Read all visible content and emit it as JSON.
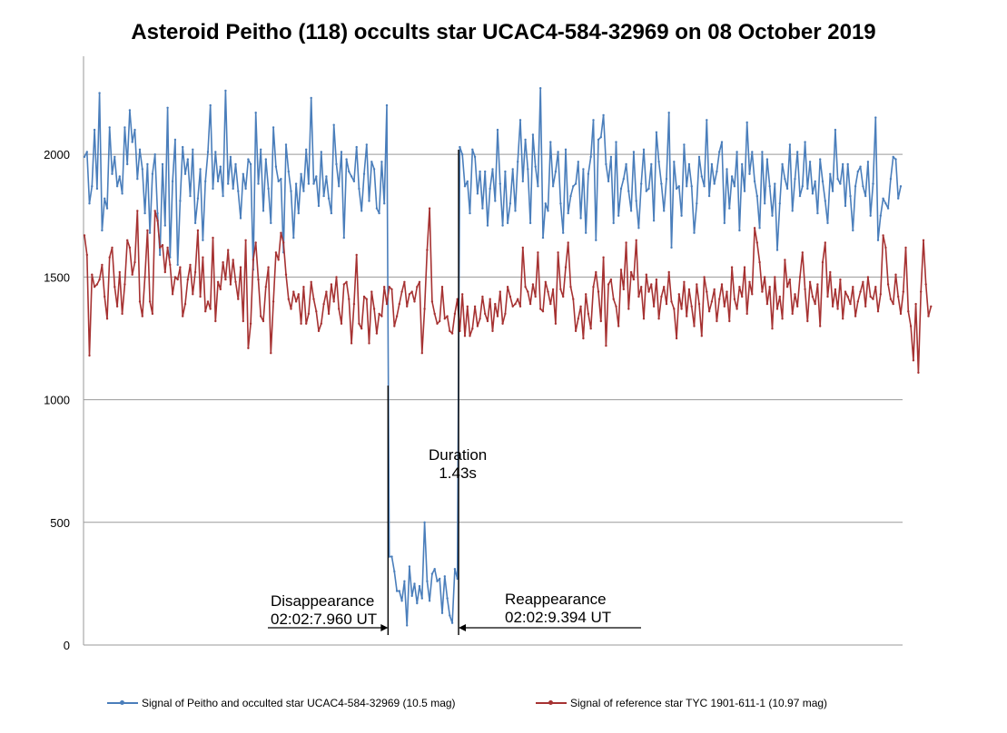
{
  "chart_data": {
    "type": "line",
    "title": "Asteroid Peitho (118) occults star UCAC4-584-32969 on 08 October 2019",
    "xlabel": "",
    "ylabel": "",
    "ylim": [
      0,
      2400
    ],
    "yticks": [
      0,
      500,
      1000,
      1500,
      2000
    ],
    "grid": "horizontal",
    "legend_position": "bottom",
    "series": [
      {
        "name": "Signal of Peitho and occulted star UCAC4-584-32969 (10.5 mag)",
        "color": "#4a7ebb",
        "values": [
          1990,
          2010,
          1800,
          1870,
          2100,
          1860,
          2250,
          1690,
          1820,
          1780,
          2110,
          1920,
          1990,
          1870,
          1910,
          1840,
          2110,
          1960,
          2180,
          2050,
          2100,
          1900,
          2020,
          1940,
          1760,
          1960,
          1680,
          1920,
          2000,
          1760,
          1590,
          1960,
          1710,
          2190,
          1580,
          1890,
          2060,
          1550,
          1810,
          2030,
          1920,
          1980,
          1830,
          2020,
          1720,
          1820,
          1940,
          1650,
          1890,
          2010,
          2200,
          1860,
          2010,
          1890,
          1950,
          1830,
          2260,
          1880,
          1990,
          1860,
          1960,
          1850,
          1740,
          1920,
          1860,
          1980,
          1960,
          1530,
          2170,
          1880,
          2020,
          1770,
          1980,
          1860,
          1720,
          2110,
          1950,
          1890,
          1900,
          1600,
          2040,
          1930,
          1850,
          1660,
          1880,
          1760,
          1920,
          1850,
          2020,
          1880,
          2230,
          1880,
          1910,
          1790,
          2010,
          1830,
          1910,
          1820,
          1760,
          2120,
          1960,
          1870,
          2010,
          1660,
          1980,
          1930,
          1910,
          1890,
          2030,
          1860,
          1770,
          1920,
          2040,
          1810,
          1970,
          1940,
          1780,
          1760,
          1970,
          1800,
          2200,
          360,
          360,
          300,
          220,
          220,
          180,
          260,
          80,
          320,
          200,
          250,
          170,
          240,
          190,
          500,
          260,
          180,
          290,
          310,
          260,
          270,
          130,
          280,
          190,
          120,
          90,
          310,
          270,
          2030,
          2000,
          1870,
          1890,
          1760,
          2020,
          1990,
          1840,
          1930,
          1780,
          1930,
          1710,
          1860,
          1940,
          1810,
          2100,
          1880,
          1710,
          1930,
          1720,
          1800,
          1940,
          1770,
          1970,
          2140,
          1890,
          2060,
          1940,
          1720,
          2080,
          1950,
          1870,
          2270,
          1660,
          1800,
          1770,
          2050,
          1870,
          1930,
          2010,
          1800,
          1680,
          2020,
          1760,
          1830,
          1870,
          1880,
          1970,
          1740,
          1940,
          1680,
          1920,
          1990,
          2140,
          1650,
          2060,
          2070,
          2160,
          1960,
          1890,
          1990,
          1720,
          2050,
          1750,
          1860,
          1900,
          1960,
          1850,
          1770,
          2010,
          1810,
          1700,
          1880,
          2020,
          1850,
          1860,
          1960,
          1730,
          2090,
          1970,
          1880,
          1770,
          1900,
          2170,
          1620,
          1970,
          1860,
          1870,
          1750,
          2040,
          1870,
          1960,
          1870,
          1680,
          1800,
          1990,
          1910,
          1870,
          2140,
          1830,
          1960,
          1880,
          1930,
          2010,
          2050,
          1720,
          1940,
          1780,
          1910,
          1870,
          2010,
          1690,
          1960,
          1850,
          2130,
          1920,
          2010,
          1890,
          1830,
          1700,
          2010,
          1800,
          1980,
          1870,
          1750,
          1880,
          1610,
          1800,
          1960,
          1900,
          1860,
          2040,
          1770,
          1900,
          2010,
          1830,
          1870,
          2050,
          1860,
          1970,
          1840,
          1890,
          1760,
          1980,
          1890,
          1810,
          1720,
          1920,
          1850,
          2100,
          1900,
          1880,
          1960,
          1790,
          1960,
          1830,
          1690,
          1870,
          1930,
          1950,
          1870,
          1830,
          1970,
          1750,
          1880,
          2150,
          1650,
          1750,
          1820,
          1800,
          1780,
          1900,
          1990,
          1980,
          1820,
          1870
        ]
      },
      {
        "name": "Signal of reference star TYC 1901-611-1 (10.97 mag)",
        "color": "#a63232",
        "values": [
          1670,
          1590,
          1180,
          1510,
          1460,
          1470,
          1490,
          1550,
          1420,
          1330,
          1580,
          1620,
          1460,
          1380,
          1520,
          1350,
          1470,
          1650,
          1620,
          1510,
          1560,
          1770,
          1400,
          1340,
          1500,
          1690,
          1400,
          1350,
          1770,
          1730,
          1620,
          1630,
          1520,
          1620,
          1550,
          1430,
          1500,
          1490,
          1540,
          1340,
          1390,
          1490,
          1550,
          1430,
          1520,
          1690,
          1420,
          1580,
          1360,
          1400,
          1370,
          1660,
          1320,
          1480,
          1450,
          1560,
          1490,
          1610,
          1470,
          1570,
          1480,
          1410,
          1540,
          1320,
          1650,
          1210,
          1310,
          1570,
          1640,
          1490,
          1340,
          1320,
          1460,
          1540,
          1190,
          1400,
          1600,
          1570,
          1680,
          1640,
          1510,
          1410,
          1370,
          1440,
          1400,
          1430,
          1310,
          1460,
          1310,
          1350,
          1480,
          1410,
          1360,
          1280,
          1310,
          1390,
          1440,
          1350,
          1470,
          1400,
          1500,
          1370,
          1310,
          1470,
          1480,
          1410,
          1230,
          1390,
          1590,
          1310,
          1290,
          1420,
          1410,
          1230,
          1440,
          1370,
          1270,
          1350,
          1340,
          1460,
          1390,
          1460,
          1450,
          1300,
          1340,
          1390,
          1440,
          1480,
          1380,
          1430,
          1440,
          1400,
          1460,
          1480,
          1190,
          1370,
          1610,
          1780,
          1400,
          1350,
          1310,
          1320,
          1460,
          1330,
          1340,
          1280,
          1270,
          1350,
          1410,
          1280,
          1430,
          1260,
          1380,
          1260,
          1290,
          1380,
          1300,
          1330,
          1420,
          1350,
          1320,
          1410,
          1280,
          1390,
          1340,
          1440,
          1310,
          1350,
          1460,
          1420,
          1380,
          1390,
          1410,
          1380,
          1620,
          1460,
          1440,
          1390,
          1470,
          1420,
          1600,
          1370,
          1360,
          1480,
          1440,
          1390,
          1450,
          1310,
          1600,
          1450,
          1420,
          1540,
          1640,
          1460,
          1410,
          1280,
          1330,
          1380,
          1250,
          1430,
          1350,
          1290,
          1460,
          1520,
          1440,
          1320,
          1580,
          1220,
          1470,
          1490,
          1410,
          1380,
          1300,
          1530,
          1450,
          1640,
          1370,
          1520,
          1490,
          1650,
          1420,
          1460,
          1330,
          1510,
          1440,
          1470,
          1380,
          1490,
          1330,
          1420,
          1460,
          1390,
          1520,
          1400,
          1370,
          1250,
          1430,
          1370,
          1480,
          1340,
          1450,
          1380,
          1300,
          1470,
          1390,
          1260,
          1500,
          1440,
          1360,
          1400,
          1450,
          1320,
          1410,
          1470,
          1380,
          1440,
          1320,
          1540,
          1410,
          1370,
          1460,
          1420,
          1540,
          1350,
          1480,
          1430,
          1700,
          1640,
          1560,
          1440,
          1500,
          1390,
          1460,
          1290,
          1500,
          1370,
          1420,
          1330,
          1570,
          1460,
          1490,
          1350,
          1430,
          1380,
          1500,
          1600,
          1450,
          1320,
          1480,
          1420,
          1390,
          1470,
          1300,
          1560,
          1640,
          1420,
          1520,
          1380,
          1450,
          1370,
          1490,
          1330,
          1440,
          1420,
          1390,
          1460,
          1340,
          1400,
          1440,
          1480,
          1380,
          1500,
          1420,
          1410,
          1460,
          1360,
          1430,
          1670,
          1620,
          1470,
          1410,
          1390,
          1510,
          1420,
          1350,
          1440,
          1620,
          1360,
          1300,
          1160,
          1390,
          1110,
          1440,
          1650,
          1470,
          1340,
          1380
        ]
      }
    ],
    "annotations": {
      "duration": [
        "Duration",
        "1.43s"
      ],
      "disappearance": [
        "Disappearance",
        "02:02:7.960 UT"
      ],
      "reappearance": [
        "Reappearance",
        "02:02:9.394 UT"
      ]
    }
  }
}
